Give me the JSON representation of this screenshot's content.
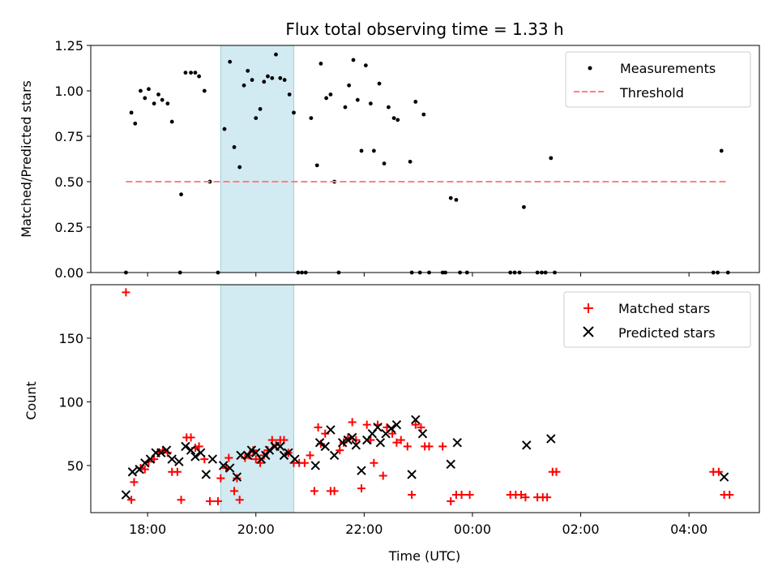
{
  "chart_data": [
    {
      "type": "scatter",
      "title": "Flux total observing time = 1.33 h",
      "ylabel": "Matched/Predicted stars",
      "xlabel": "",
      "x_unit": "hours since 00:00 UTC (values past midnight exceed 24)",
      "xlim": [
        16.95,
        29.3
      ],
      "ylim": [
        0,
        1.25
      ],
      "yticks": [
        0.0,
        0.25,
        0.5,
        0.75,
        1.0,
        1.25
      ],
      "ytick_labels": [
        "0.00",
        "0.25",
        "0.50",
        "0.75",
        "1.00",
        "1.25"
      ],
      "highlight_span": {
        "x0": 19.35,
        "x1": 20.7,
        "color": "#add8e6"
      },
      "legend": {
        "placement": "top-right",
        "entries": [
          "Measurements",
          "Threshold"
        ]
      },
      "series": [
        {
          "name": "Measurements",
          "marker": "dot",
          "color": "#000000",
          "points": [
            [
              17.6,
              0.0
            ],
            [
              17.7,
              0.88
            ],
            [
              17.77,
              0.82
            ],
            [
              17.87,
              1.0
            ],
            [
              17.95,
              0.96
            ],
            [
              18.02,
              1.01
            ],
            [
              18.12,
              0.93
            ],
            [
              18.2,
              0.98
            ],
            [
              18.27,
              0.95
            ],
            [
              18.37,
              0.93
            ],
            [
              18.45,
              0.83
            ],
            [
              18.6,
              0.0
            ],
            [
              18.62,
              0.43
            ],
            [
              18.7,
              1.1
            ],
            [
              18.8,
              1.1
            ],
            [
              18.88,
              1.1
            ],
            [
              18.95,
              1.08
            ],
            [
              19.05,
              1.0
            ],
            [
              19.15,
              0.5
            ],
            [
              19.3,
              0.0
            ],
            [
              19.42,
              0.79
            ],
            [
              19.52,
              1.16
            ],
            [
              19.6,
              0.69
            ],
            [
              19.7,
              0.58
            ],
            [
              19.78,
              1.03
            ],
            [
              19.85,
              1.11
            ],
            [
              19.93,
              1.06
            ],
            [
              20.0,
              0.85
            ],
            [
              20.08,
              0.9
            ],
            [
              20.15,
              1.05
            ],
            [
              20.22,
              1.08
            ],
            [
              20.3,
              1.07
            ],
            [
              20.37,
              1.2
            ],
            [
              20.45,
              1.07
            ],
            [
              20.53,
              1.06
            ],
            [
              20.62,
              0.98
            ],
            [
              20.7,
              0.88
            ],
            [
              20.78,
              0.0
            ],
            [
              20.85,
              0.0
            ],
            [
              20.92,
              0.0
            ],
            [
              21.02,
              0.85
            ],
            [
              21.13,
              0.59
            ],
            [
              21.2,
              1.15
            ],
            [
              21.3,
              0.96
            ],
            [
              21.38,
              0.98
            ],
            [
              21.45,
              0.5
            ],
            [
              21.53,
              0.0
            ],
            [
              21.65,
              0.91
            ],
            [
              21.72,
              1.03
            ],
            [
              21.8,
              1.17
            ],
            [
              21.88,
              0.95
            ],
            [
              21.95,
              0.67
            ],
            [
              22.03,
              1.14
            ],
            [
              22.12,
              0.93
            ],
            [
              22.18,
              0.67
            ],
            [
              22.28,
              1.04
            ],
            [
              22.37,
              0.6
            ],
            [
              22.45,
              0.91
            ],
            [
              22.55,
              0.85
            ],
            [
              22.62,
              0.84
            ],
            [
              22.85,
              0.61
            ],
            [
              22.88,
              0.0
            ],
            [
              22.95,
              0.94
            ],
            [
              23.03,
              0.0
            ],
            [
              23.1,
              0.87
            ],
            [
              23.2,
              0.0
            ],
            [
              23.45,
              0.0
            ],
            [
              23.5,
              0.0
            ],
            [
              23.6,
              0.41
            ],
            [
              23.7,
              0.4
            ],
            [
              23.77,
              0.0
            ],
            [
              23.9,
              0.0
            ],
            [
              24.7,
              0.0
            ],
            [
              24.78,
              0.0
            ],
            [
              24.87,
              0.0
            ],
            [
              24.95,
              0.36
            ],
            [
              25.2,
              0.0
            ],
            [
              25.28,
              0.0
            ],
            [
              25.35,
              0.0
            ],
            [
              25.45,
              0.63
            ],
            [
              25.52,
              0.0
            ],
            [
              28.45,
              0.0
            ],
            [
              28.53,
              0.0
            ],
            [
              28.6,
              0.67
            ],
            [
              28.72,
              0.0
            ]
          ]
        },
        {
          "name": "Threshold",
          "marker": "dashed-line",
          "color": "#ff8080",
          "x": [
            17.6,
            28.72
          ],
          "y": [
            0.5,
            0.5
          ]
        }
      ]
    },
    {
      "type": "scatter",
      "title": "",
      "ylabel": "Count",
      "xlabel": "Time (UTC)",
      "x_unit": "hours since 00:00 UTC (values past midnight exceed 24)",
      "xlim": [
        16.95,
        29.3
      ],
      "ylim": [
        13,
        192
      ],
      "yticks": [
        50,
        100,
        150
      ],
      "ytick_labels": [
        "50",
        "100",
        "150"
      ],
      "xticks": [
        18,
        20,
        22,
        24,
        26,
        28
      ],
      "xtick_labels": [
        "18:00",
        "20:00",
        "22:00",
        "00:00",
        "02:00",
        "04:00"
      ],
      "highlight_span": {
        "x0": 19.35,
        "x1": 20.7,
        "color": "#add8e6"
      },
      "legend": {
        "placement": "top-right",
        "entries": [
          "Matched stars",
          "Predicted stars"
        ]
      },
      "series": [
        {
          "name": "Matched stars",
          "marker": "plus",
          "color": "#ff0000",
          "points": [
            [
              17.6,
              186
            ],
            [
              17.7,
              23
            ],
            [
              17.75,
              37
            ],
            [
              17.87,
              48
            ],
            [
              17.95,
              47
            ],
            [
              18.02,
              53
            ],
            [
              18.12,
              55
            ],
            [
              18.2,
              60
            ],
            [
              18.28,
              62
            ],
            [
              18.37,
              60
            ],
            [
              18.45,
              45
            ],
            [
              18.55,
              45
            ],
            [
              18.62,
              23
            ],
            [
              18.72,
              72
            ],
            [
              18.8,
              72
            ],
            [
              18.88,
              64
            ],
            [
              18.95,
              65
            ],
            [
              19.05,
              55
            ],
            [
              19.15,
              22
            ],
            [
              19.3,
              22
            ],
            [
              19.35,
              40
            ],
            [
              19.45,
              48
            ],
            [
              19.5,
              56
            ],
            [
              19.6,
              30
            ],
            [
              19.65,
              40
            ],
            [
              19.7,
              23
            ],
            [
              19.8,
              56
            ],
            [
              19.88,
              58
            ],
            [
              19.95,
              62
            ],
            [
              20.0,
              55
            ],
            [
              20.08,
              52
            ],
            [
              20.15,
              58
            ],
            [
              20.22,
              62
            ],
            [
              20.3,
              70
            ],
            [
              20.37,
              66
            ],
            [
              20.45,
              70
            ],
            [
              20.52,
              70
            ],
            [
              20.6,
              60
            ],
            [
              20.7,
              52
            ],
            [
              20.8,
              52
            ],
            [
              20.9,
              52
            ],
            [
              21.0,
              58
            ],
            [
              21.08,
              30
            ],
            [
              21.15,
              80
            ],
            [
              21.2,
              67
            ],
            [
              21.28,
              75
            ],
            [
              21.38,
              30
            ],
            [
              21.45,
              30
            ],
            [
              21.55,
              62
            ],
            [
              21.62,
              68
            ],
            [
              21.7,
              72
            ],
            [
              21.78,
              84
            ],
            [
              21.85,
              70
            ],
            [
              21.95,
              32
            ],
            [
              22.05,
              82
            ],
            [
              22.12,
              70
            ],
            [
              22.18,
              52
            ],
            [
              22.25,
              82
            ],
            [
              22.35,
              42
            ],
            [
              22.42,
              80
            ],
            [
              22.52,
              75
            ],
            [
              22.6,
              68
            ],
            [
              22.68,
              70
            ],
            [
              22.8,
              65
            ],
            [
              22.88,
              27
            ],
            [
              22.95,
              82
            ],
            [
              23.05,
              80
            ],
            [
              23.12,
              65
            ],
            [
              23.2,
              65
            ],
            [
              23.45,
              65
            ],
            [
              23.6,
              22
            ],
            [
              23.7,
              27
            ],
            [
              23.8,
              27
            ],
            [
              23.95,
              27
            ],
            [
              24.7,
              27
            ],
            [
              24.8,
              27
            ],
            [
              24.9,
              27
            ],
            [
              24.98,
              25
            ],
            [
              25.2,
              25
            ],
            [
              25.3,
              25
            ],
            [
              25.38,
              25
            ],
            [
              25.48,
              45
            ],
            [
              25.55,
              45
            ],
            [
              28.45,
              45
            ],
            [
              28.55,
              45
            ],
            [
              28.65,
              27
            ],
            [
              28.75,
              27
            ]
          ]
        },
        {
          "name": "Predicted stars",
          "marker": "x",
          "color": "#000000",
          "points": [
            [
              17.6,
              27
            ],
            [
              17.72,
              45
            ],
            [
              17.85,
              47
            ],
            [
              17.95,
              52
            ],
            [
              18.05,
              55
            ],
            [
              18.15,
              60
            ],
            [
              18.25,
              60
            ],
            [
              18.35,
              62
            ],
            [
              18.45,
              55
            ],
            [
              18.58,
              53
            ],
            [
              18.7,
              65
            ],
            [
              18.8,
              62
            ],
            [
              18.88,
              57
            ],
            [
              18.98,
              60
            ],
            [
              19.08,
              43
            ],
            [
              19.2,
              55
            ],
            [
              19.4,
              50
            ],
            [
              19.52,
              48
            ],
            [
              19.65,
              41
            ],
            [
              19.72,
              58
            ],
            [
              19.85,
              58
            ],
            [
              19.92,
              62
            ],
            [
              20.0,
              60
            ],
            [
              20.1,
              55
            ],
            [
              20.18,
              58
            ],
            [
              20.25,
              62
            ],
            [
              20.35,
              65
            ],
            [
              20.45,
              65
            ],
            [
              20.52,
              58
            ],
            [
              20.6,
              60
            ],
            [
              20.72,
              55
            ],
            [
              21.1,
              50
            ],
            [
              21.18,
              68
            ],
            [
              21.28,
              65
            ],
            [
              21.38,
              78
            ],
            [
              21.45,
              58
            ],
            [
              21.6,
              68
            ],
            [
              21.7,
              70
            ],
            [
              21.78,
              72
            ],
            [
              21.85,
              66
            ],
            [
              21.95,
              46
            ],
            [
              22.05,
              70
            ],
            [
              22.15,
              75
            ],
            [
              22.25,
              80
            ],
            [
              22.3,
              68
            ],
            [
              22.4,
              75
            ],
            [
              22.5,
              79
            ],
            [
              22.6,
              82
            ],
            [
              22.88,
              43
            ],
            [
              22.95,
              86
            ],
            [
              23.08,
              75
            ],
            [
              23.6,
              51
            ],
            [
              23.72,
              68
            ],
            [
              25.0,
              66
            ],
            [
              25.45,
              71
            ],
            [
              28.65,
              41
            ]
          ]
        }
      ]
    }
  ]
}
